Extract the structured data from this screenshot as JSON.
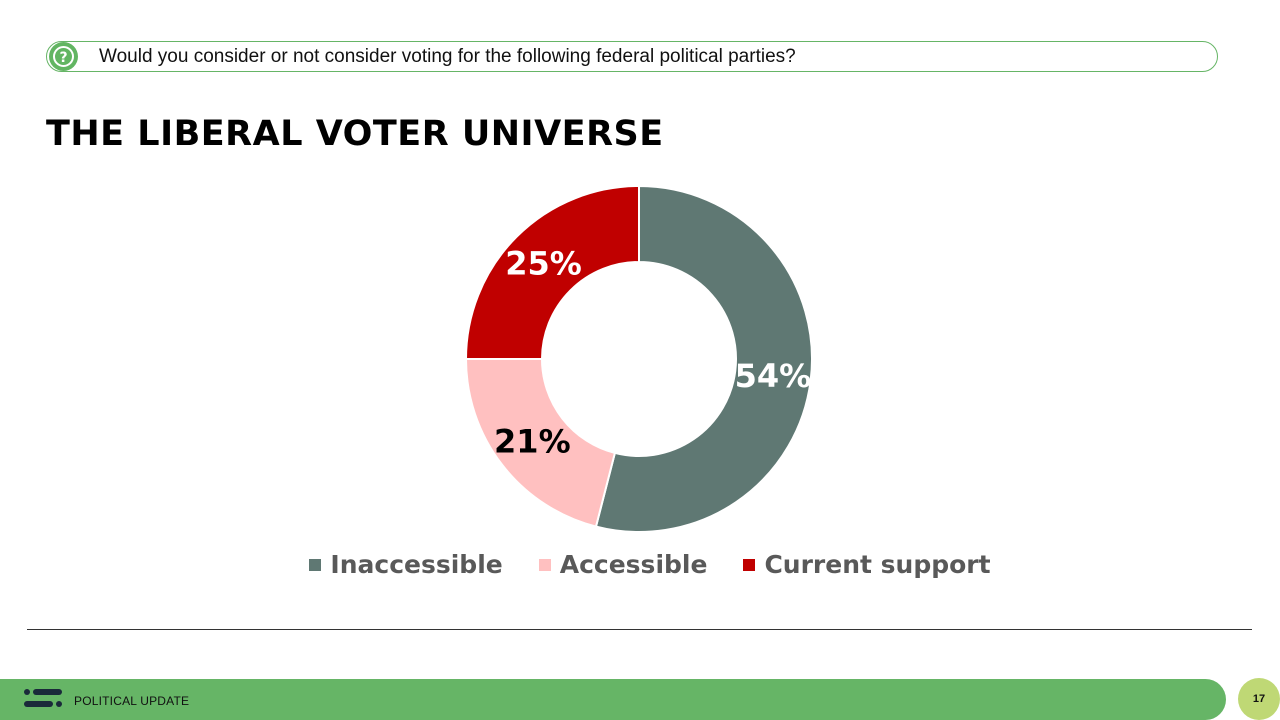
{
  "header": {
    "question": "Would you consider or not consider voting for the following federal political parties?",
    "icon": "question-icon"
  },
  "title": "THE LIBERAL VOTER UNIVERSE",
  "chart_data": {
    "type": "pie",
    "variant": "donut",
    "title": "",
    "categories": [
      "Inaccessible",
      "Accessible",
      "Current support"
    ],
    "values": [
      54,
      21,
      25
    ],
    "labels": [
      "54%",
      "21%",
      "25%"
    ],
    "colors": [
      "#5f7873",
      "#ffc0c0",
      "#c00000"
    ],
    "label_colors": [
      "#ffffff",
      "#000000",
      "#ffffff"
    ],
    "legend_position": "bottom"
  },
  "footer": {
    "label": "POLITICAL UPDATE",
    "page": "17",
    "logo": "company-logo",
    "accent": "#66b566"
  }
}
